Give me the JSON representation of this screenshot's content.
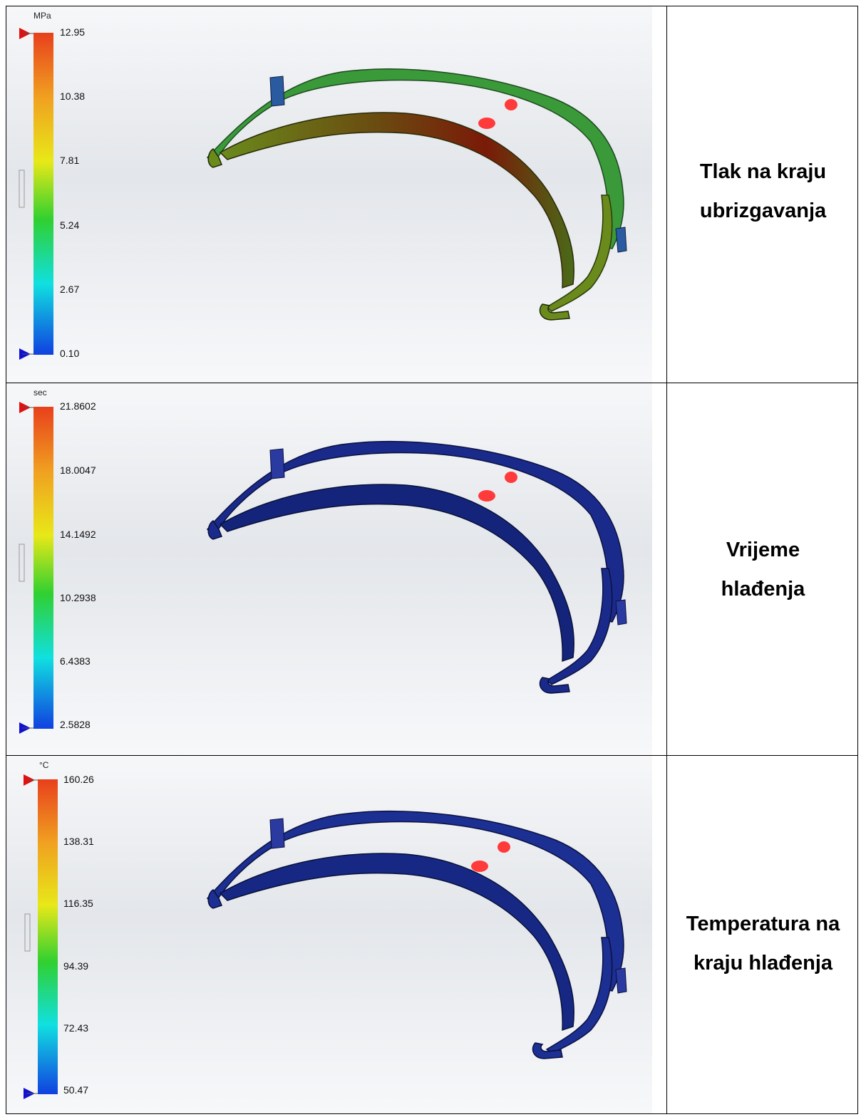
{
  "rows": [
    {
      "caption_lines": [
        "Tlak na kraju",
        "ubrizgavanja"
      ],
      "legend": {
        "unit": "MPa",
        "ticks": [
          "12.95",
          "10.38",
          "7.81",
          "5.24",
          "2.67",
          "0.10"
        ]
      },
      "part_colors": {
        "upper_band": "#2f9a3c",
        "inner_band": "#6a7a14",
        "hot_zone": "#7a1a08"
      }
    },
    {
      "caption_lines": [
        "Vrijeme",
        "hlađenja"
      ],
      "legend": {
        "unit": "sec",
        "ticks": [
          "21.8602",
          "18.0047",
          "14.1492",
          "10.2938",
          "6.4383",
          "2.5828"
        ]
      },
      "part_colors": {
        "upper_band": "#1a2a8a",
        "inner_band": "#14247a",
        "hot_zone": "#101c66"
      }
    },
    {
      "caption_lines": [
        "Temperatura na",
        "kraju hlađenja"
      ],
      "legend": {
        "unit": "°C",
        "ticks": [
          "160.26",
          "138.31",
          "116.35",
          "94.39",
          "72.43",
          "50.47"
        ]
      },
      "part_colors": {
        "upper_band": "#1c2f92",
        "inner_band": "#162884",
        "hot_zone": "#13237a"
      }
    }
  ],
  "gate_color": "#ff3a3a"
}
